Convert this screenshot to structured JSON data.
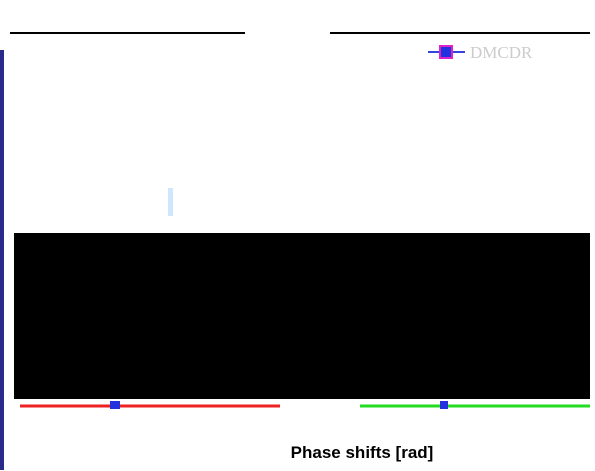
{
  "legend": {
    "label": "DMCDR"
  },
  "x_axis": {
    "label": "Phase shifts [rad]"
  }
}
